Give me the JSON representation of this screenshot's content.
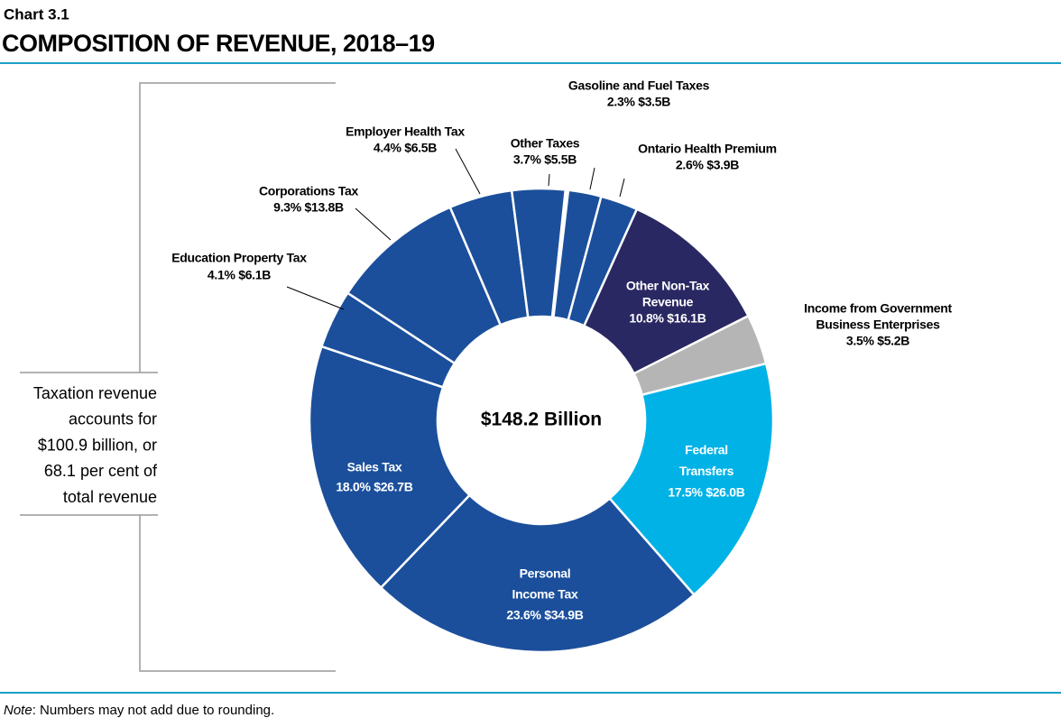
{
  "chart_data": {
    "type": "donut",
    "kicker": "Chart 3.1",
    "title": "COMPOSITION OF REVENUE, 2018–19",
    "center_label": "$148.2 Billion",
    "side_note": [
      "Taxation revenue",
      "accounts for",
      "$100.9 billion, or",
      "68.1 per cent of",
      "total revenue"
    ],
    "note": {
      "label": "Note",
      "text": ": Numbers may not add due to rounding."
    },
    "categories": [
      [
        "Gasoline and Fuel Taxes"
      ],
      [
        "Ontario Health Premium"
      ],
      [
        "Other Non-Tax",
        "Revenue"
      ],
      [
        "Income from Government",
        "Business Enterprises"
      ],
      [
        "Federal",
        "Transfers"
      ],
      [
        "Personal",
        "Income Tax"
      ],
      [
        "Sales Tax"
      ],
      [
        "Education Property Tax"
      ],
      [
        "Corporations Tax"
      ],
      [
        "Employer Health Tax"
      ],
      [
        "Other Taxes"
      ]
    ],
    "values": [
      2.3,
      2.6,
      10.8,
      3.5,
      17.5,
      23.6,
      18.0,
      4.1,
      9.3,
      4.4,
      3.7
    ],
    "value_labels": [
      "2.3%  $3.5B",
      "2.6%  $3.9B",
      "10.8%  $16.1B",
      "3.5%  $5.2B",
      "17.5%  $26.0B",
      "23.6%  $34.9B",
      "18.0%  $26.7B",
      "4.1%  $6.1B",
      "9.3%  $13.8B",
      "4.4%  $6.5B",
      "3.7%  $5.5B"
    ],
    "colors": [
      "#1b4f9c",
      "#1b4f9c",
      "#2a2862",
      "#b5b5b5",
      "#00b2e6",
      "#1b4f9c",
      "#1b4f9c",
      "#1b4f9c",
      "#1b4f9c",
      "#1b4f9c",
      "#1b4f9c"
    ]
  }
}
